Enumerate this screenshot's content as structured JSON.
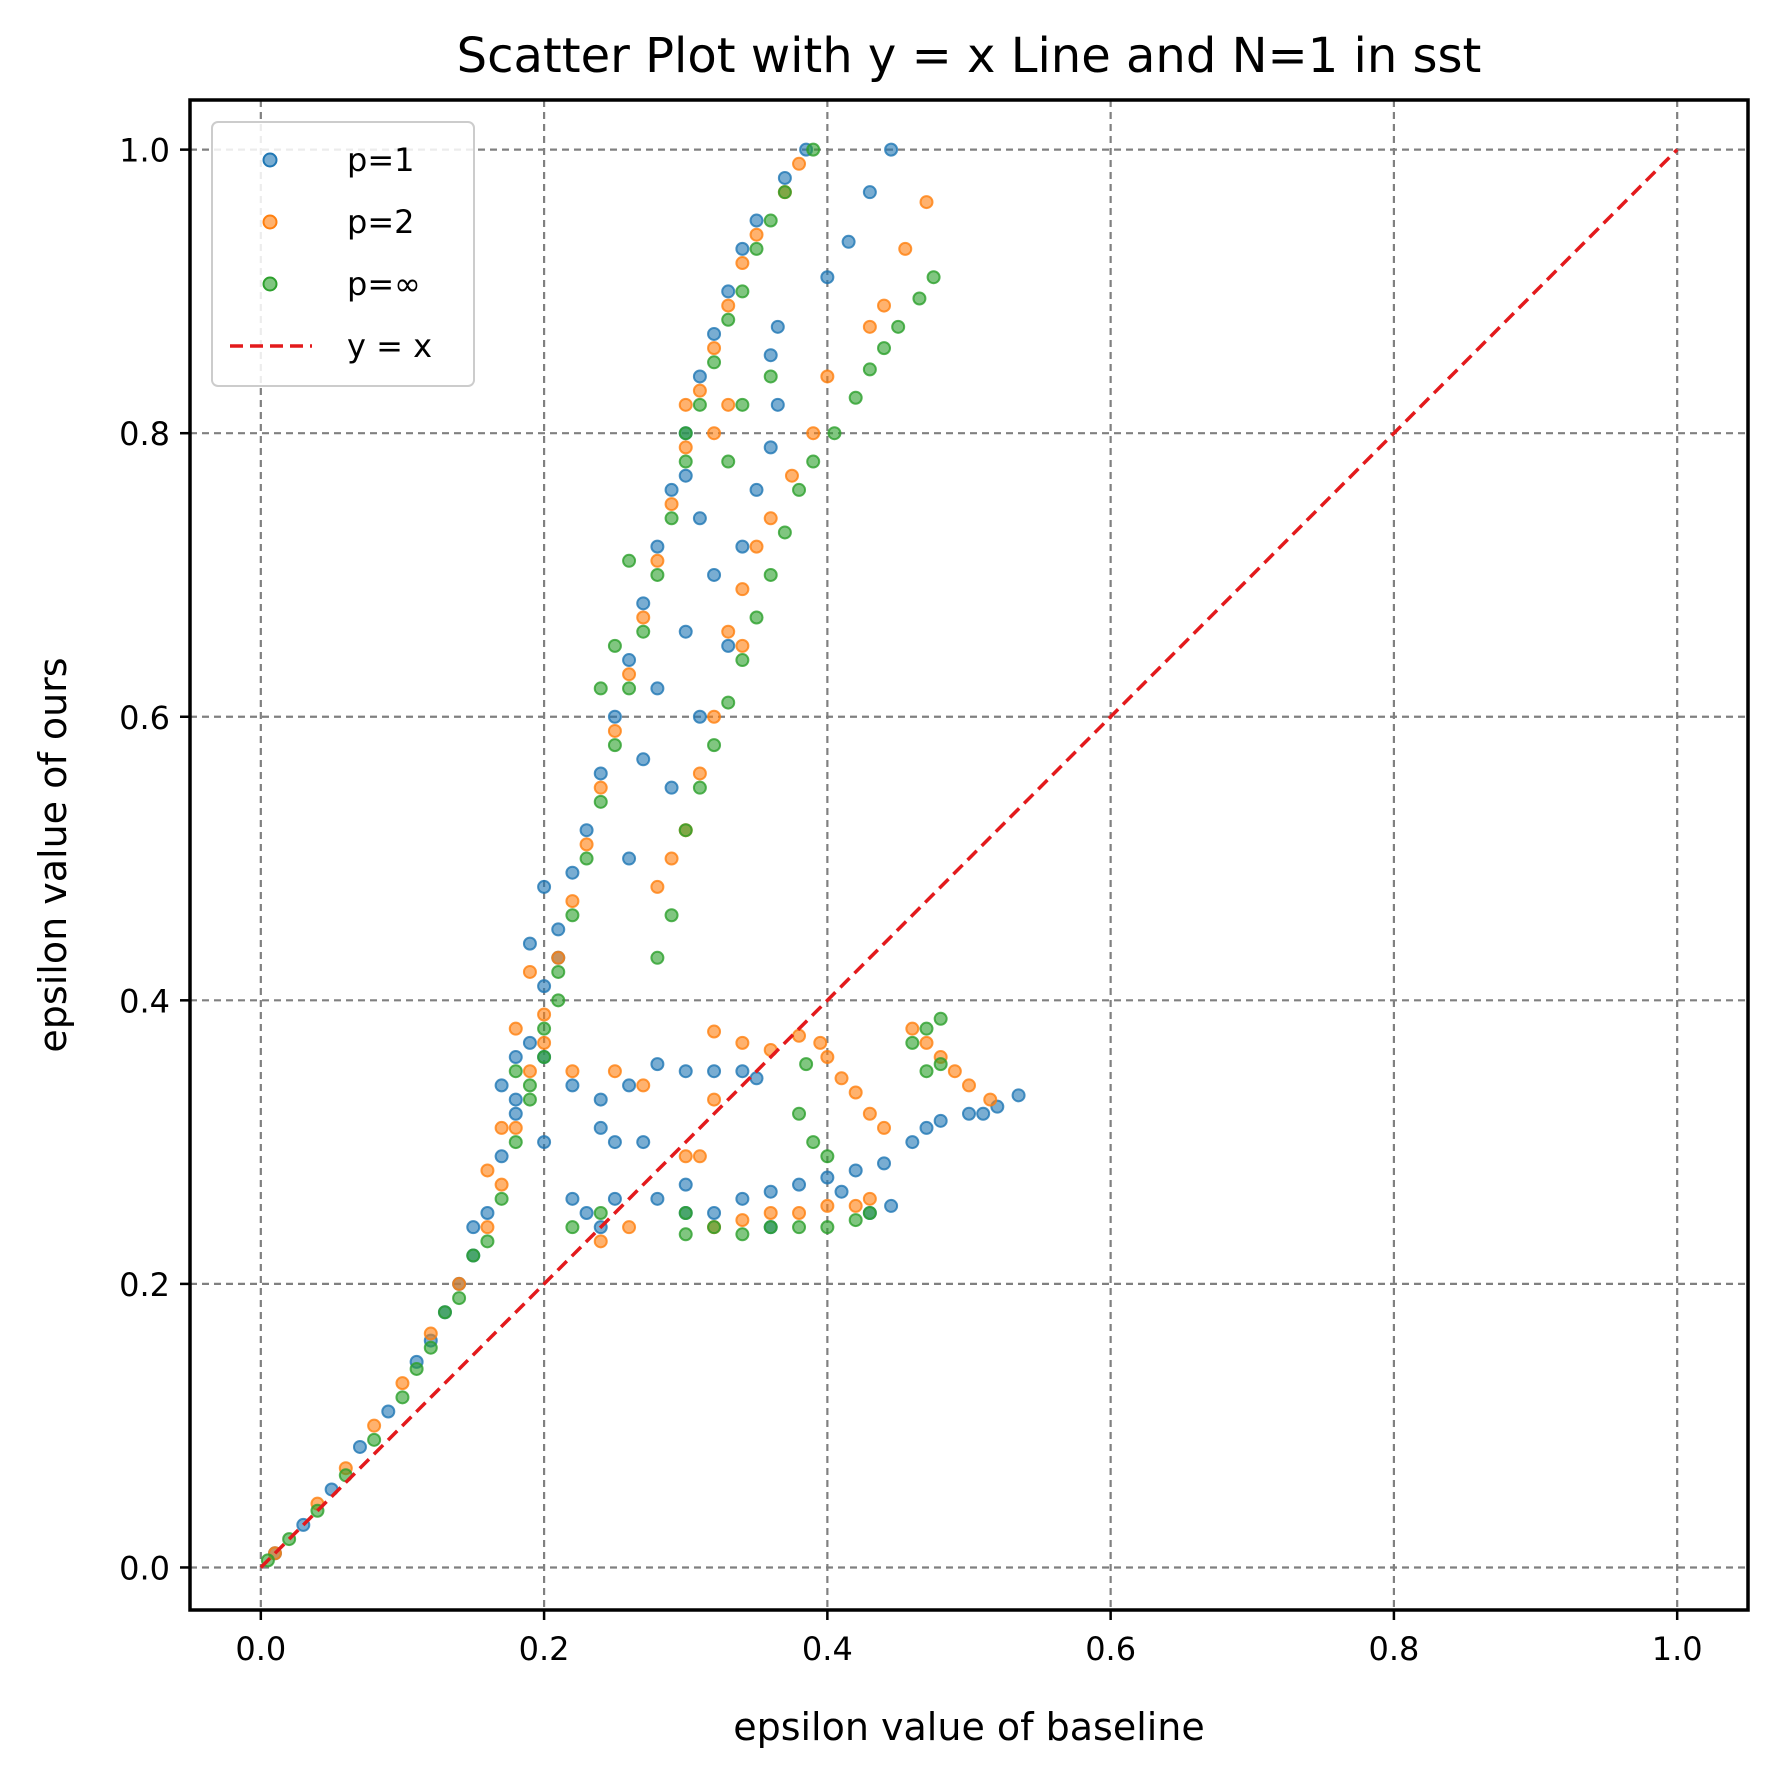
{
  "chart_data": {
    "type": "scatter",
    "title": "Scatter Plot with y = x Line and N=1 in sst",
    "xlabel": "epsilon value of baseline",
    "ylabel": "epsilon value of ours",
    "xlim": [
      -0.05,
      1.05
    ],
    "ylim": [
      -0.03,
      1.035
    ],
    "xticks": [
      0.0,
      0.2,
      0.4,
      0.6,
      0.8,
      1.0
    ],
    "yticks": [
      0.0,
      0.2,
      0.4,
      0.6,
      0.8,
      1.0
    ],
    "xtick_labels": [
      "0.0",
      "0.2",
      "0.4",
      "0.6",
      "0.8",
      "1.0"
    ],
    "ytick_labels": [
      "0.0",
      "0.2",
      "0.4",
      "0.6",
      "0.8",
      "1.0"
    ],
    "grid": true,
    "legend_position": "top-left",
    "series": [
      {
        "name": "p=1",
        "color": "#1f77b4",
        "points": [
          [
            0.01,
            0.01
          ],
          [
            0.03,
            0.03
          ],
          [
            0.05,
            0.055
          ],
          [
            0.07,
            0.085
          ],
          [
            0.09,
            0.11
          ],
          [
            0.11,
            0.145
          ],
          [
            0.13,
            0.18
          ],
          [
            0.15,
            0.22
          ],
          [
            0.16,
            0.25
          ],
          [
            0.17,
            0.29
          ],
          [
            0.18,
            0.33
          ],
          [
            0.19,
            0.37
          ],
          [
            0.2,
            0.41
          ],
          [
            0.21,
            0.45
          ],
          [
            0.22,
            0.49
          ],
          [
            0.23,
            0.52
          ],
          [
            0.24,
            0.56
          ],
          [
            0.25,
            0.6
          ],
          [
            0.26,
            0.64
          ],
          [
            0.27,
            0.68
          ],
          [
            0.28,
            0.72
          ],
          [
            0.29,
            0.76
          ],
          [
            0.3,
            0.8
          ],
          [
            0.31,
            0.84
          ],
          [
            0.32,
            0.87
          ],
          [
            0.33,
            0.9
          ],
          [
            0.34,
            0.93
          ],
          [
            0.35,
            0.95
          ],
          [
            0.37,
            0.98
          ],
          [
            0.385,
            1.0
          ],
          [
            0.445,
            1.0
          ],
          [
            0.43,
            0.97
          ],
          [
            0.415,
            0.935
          ],
          [
            0.4,
            0.91
          ],
          [
            0.365,
            0.875
          ],
          [
            0.36,
            0.855
          ],
          [
            0.365,
            0.82
          ],
          [
            0.36,
            0.79
          ],
          [
            0.35,
            0.76
          ],
          [
            0.34,
            0.72
          ],
          [
            0.3,
            0.77
          ],
          [
            0.31,
            0.74
          ],
          [
            0.32,
            0.7
          ],
          [
            0.33,
            0.65
          ],
          [
            0.3,
            0.66
          ],
          [
            0.28,
            0.62
          ],
          [
            0.31,
            0.6
          ],
          [
            0.27,
            0.57
          ],
          [
            0.29,
            0.55
          ],
          [
            0.26,
            0.5
          ],
          [
            0.22,
            0.34
          ],
          [
            0.24,
            0.33
          ],
          [
            0.26,
            0.34
          ],
          [
            0.28,
            0.355
          ],
          [
            0.3,
            0.35
          ],
          [
            0.32,
            0.35
          ],
          [
            0.34,
            0.35
          ],
          [
            0.35,
            0.345
          ],
          [
            0.2,
            0.36
          ],
          [
            0.18,
            0.32
          ],
          [
            0.25,
            0.3
          ],
          [
            0.24,
            0.31
          ],
          [
            0.27,
            0.3
          ],
          [
            0.23,
            0.25
          ],
          [
            0.24,
            0.24
          ],
          [
            0.22,
            0.26
          ],
          [
            0.25,
            0.26
          ],
          [
            0.28,
            0.26
          ],
          [
            0.3,
            0.27
          ],
          [
            0.3,
            0.25
          ],
          [
            0.32,
            0.25
          ],
          [
            0.34,
            0.26
          ],
          [
            0.36,
            0.265
          ],
          [
            0.38,
            0.27
          ],
          [
            0.4,
            0.275
          ],
          [
            0.41,
            0.265
          ],
          [
            0.42,
            0.28
          ],
          [
            0.44,
            0.285
          ],
          [
            0.46,
            0.3
          ],
          [
            0.47,
            0.31
          ],
          [
            0.48,
            0.315
          ],
          [
            0.5,
            0.32
          ],
          [
            0.51,
            0.32
          ],
          [
            0.52,
            0.325
          ],
          [
            0.535,
            0.333
          ],
          [
            0.445,
            0.255
          ],
          [
            0.43,
            0.25
          ],
          [
            0.36,
            0.24
          ],
          [
            0.19,
            0.44
          ],
          [
            0.2,
            0.48
          ],
          [
            0.21,
            0.43
          ],
          [
            0.17,
            0.34
          ],
          [
            0.18,
            0.36
          ],
          [
            0.12,
            0.16
          ],
          [
            0.14,
            0.2
          ],
          [
            0.15,
            0.24
          ],
          [
            0.2,
            0.3
          ]
        ]
      },
      {
        "name": "p=2",
        "color": "#ff7f0e",
        "points": [
          [
            0.01,
            0.01
          ],
          [
            0.04,
            0.045
          ],
          [
            0.06,
            0.07
          ],
          [
            0.08,
            0.1
          ],
          [
            0.1,
            0.13
          ],
          [
            0.12,
            0.165
          ],
          [
            0.14,
            0.2
          ],
          [
            0.16,
            0.24
          ],
          [
            0.17,
            0.27
          ],
          [
            0.18,
            0.31
          ],
          [
            0.19,
            0.35
          ],
          [
            0.2,
            0.39
          ],
          [
            0.21,
            0.43
          ],
          [
            0.22,
            0.47
          ],
          [
            0.23,
            0.51
          ],
          [
            0.24,
            0.55
          ],
          [
            0.25,
            0.59
          ],
          [
            0.26,
            0.63
          ],
          [
            0.27,
            0.67
          ],
          [
            0.28,
            0.71
          ],
          [
            0.29,
            0.75
          ],
          [
            0.3,
            0.79
          ],
          [
            0.31,
            0.83
          ],
          [
            0.32,
            0.86
          ],
          [
            0.33,
            0.89
          ],
          [
            0.34,
            0.92
          ],
          [
            0.35,
            0.94
          ],
          [
            0.37,
            0.97
          ],
          [
            0.38,
            0.99
          ],
          [
            0.47,
            0.963
          ],
          [
            0.455,
            0.93
          ],
          [
            0.44,
            0.89
          ],
          [
            0.43,
            0.875
          ],
          [
            0.4,
            0.84
          ],
          [
            0.39,
            0.8
          ],
          [
            0.375,
            0.77
          ],
          [
            0.36,
            0.74
          ],
          [
            0.34,
            0.69
          ],
          [
            0.33,
            0.66
          ],
          [
            0.32,
            0.6
          ],
          [
            0.31,
            0.56
          ],
          [
            0.3,
            0.52
          ],
          [
            0.29,
            0.5
          ],
          [
            0.28,
            0.48
          ],
          [
            0.34,
            0.65
          ],
          [
            0.35,
            0.72
          ],
          [
            0.33,
            0.82
          ],
          [
            0.32,
            0.8
          ],
          [
            0.3,
            0.82
          ],
          [
            0.32,
            0.378
          ],
          [
            0.34,
            0.37
          ],
          [
            0.36,
            0.365
          ],
          [
            0.38,
            0.375
          ],
          [
            0.395,
            0.37
          ],
          [
            0.4,
            0.36
          ],
          [
            0.41,
            0.345
          ],
          [
            0.42,
            0.335
          ],
          [
            0.43,
            0.32
          ],
          [
            0.44,
            0.31
          ],
          [
            0.46,
            0.38
          ],
          [
            0.47,
            0.37
          ],
          [
            0.48,
            0.36
          ],
          [
            0.49,
            0.35
          ],
          [
            0.5,
            0.34
          ],
          [
            0.515,
            0.33
          ],
          [
            0.32,
            0.33
          ],
          [
            0.31,
            0.29
          ],
          [
            0.3,
            0.29
          ],
          [
            0.24,
            0.23
          ],
          [
            0.26,
            0.24
          ],
          [
            0.32,
            0.24
          ],
          [
            0.34,
            0.245
          ],
          [
            0.36,
            0.25
          ],
          [
            0.38,
            0.25
          ],
          [
            0.4,
            0.255
          ],
          [
            0.42,
            0.255
          ],
          [
            0.43,
            0.26
          ],
          [
            0.2,
            0.37
          ],
          [
            0.19,
            0.42
          ],
          [
            0.18,
            0.38
          ],
          [
            0.17,
            0.31
          ],
          [
            0.16,
            0.28
          ],
          [
            0.22,
            0.35
          ],
          [
            0.25,
            0.35
          ],
          [
            0.27,
            0.34
          ]
        ]
      },
      {
        "name": "p=∞",
        "color": "#2ca02c",
        "points": [
          [
            0.005,
            0.005
          ],
          [
            0.02,
            0.02
          ],
          [
            0.04,
            0.04
          ],
          [
            0.06,
            0.065
          ],
          [
            0.08,
            0.09
          ],
          [
            0.1,
            0.12
          ],
          [
            0.12,
            0.155
          ],
          [
            0.14,
            0.19
          ],
          [
            0.16,
            0.23
          ],
          [
            0.17,
            0.26
          ],
          [
            0.18,
            0.3
          ],
          [
            0.19,
            0.34
          ],
          [
            0.2,
            0.38
          ],
          [
            0.21,
            0.42
          ],
          [
            0.22,
            0.46
          ],
          [
            0.23,
            0.5
          ],
          [
            0.24,
            0.54
          ],
          [
            0.25,
            0.58
          ],
          [
            0.26,
            0.62
          ],
          [
            0.27,
            0.66
          ],
          [
            0.28,
            0.7
          ],
          [
            0.29,
            0.74
          ],
          [
            0.3,
            0.78
          ],
          [
            0.31,
            0.82
          ],
          [
            0.32,
            0.85
          ],
          [
            0.33,
            0.88
          ],
          [
            0.34,
            0.9
          ],
          [
            0.35,
            0.93
          ],
          [
            0.36,
            0.95
          ],
          [
            0.37,
            0.97
          ],
          [
            0.39,
            1.0
          ],
          [
            0.475,
            0.91
          ],
          [
            0.465,
            0.895
          ],
          [
            0.45,
            0.875
          ],
          [
            0.44,
            0.86
          ],
          [
            0.43,
            0.845
          ],
          [
            0.42,
            0.825
          ],
          [
            0.405,
            0.8
          ],
          [
            0.39,
            0.78
          ],
          [
            0.38,
            0.76
          ],
          [
            0.37,
            0.73
          ],
          [
            0.36,
            0.7
          ],
          [
            0.35,
            0.67
          ],
          [
            0.34,
            0.64
          ],
          [
            0.33,
            0.61
          ],
          [
            0.32,
            0.58
          ],
          [
            0.31,
            0.55
          ],
          [
            0.3,
            0.52
          ],
          [
            0.29,
            0.46
          ],
          [
            0.28,
            0.43
          ],
          [
            0.36,
            0.84
          ],
          [
            0.34,
            0.82
          ],
          [
            0.33,
            0.78
          ],
          [
            0.3,
            0.8
          ],
          [
            0.26,
            0.71
          ],
          [
            0.25,
            0.65
          ],
          [
            0.24,
            0.62
          ],
          [
            0.47,
            0.38
          ],
          [
            0.48,
            0.387
          ],
          [
            0.46,
            0.37
          ],
          [
            0.47,
            0.35
          ],
          [
            0.48,
            0.355
          ],
          [
            0.385,
            0.355
          ],
          [
            0.38,
            0.32
          ],
          [
            0.39,
            0.3
          ],
          [
            0.4,
            0.29
          ],
          [
            0.3,
            0.235
          ],
          [
            0.32,
            0.24
          ],
          [
            0.34,
            0.235
          ],
          [
            0.36,
            0.24
          ],
          [
            0.38,
            0.24
          ],
          [
            0.4,
            0.24
          ],
          [
            0.42,
            0.245
          ],
          [
            0.43,
            0.25
          ],
          [
            0.3,
            0.25
          ],
          [
            0.22,
            0.24
          ],
          [
            0.24,
            0.25
          ],
          [
            0.2,
            0.36
          ],
          [
            0.21,
            0.4
          ],
          [
            0.19,
            0.33
          ],
          [
            0.18,
            0.35
          ],
          [
            0.15,
            0.22
          ],
          [
            0.13,
            0.18
          ],
          [
            0.11,
            0.14
          ]
        ]
      },
      {
        "name": "y = x",
        "color": "#e31a1c",
        "style": "dashed-line",
        "points": [
          [
            0.0,
            0.0
          ],
          [
            1.0,
            1.0
          ]
        ]
      }
    ]
  }
}
